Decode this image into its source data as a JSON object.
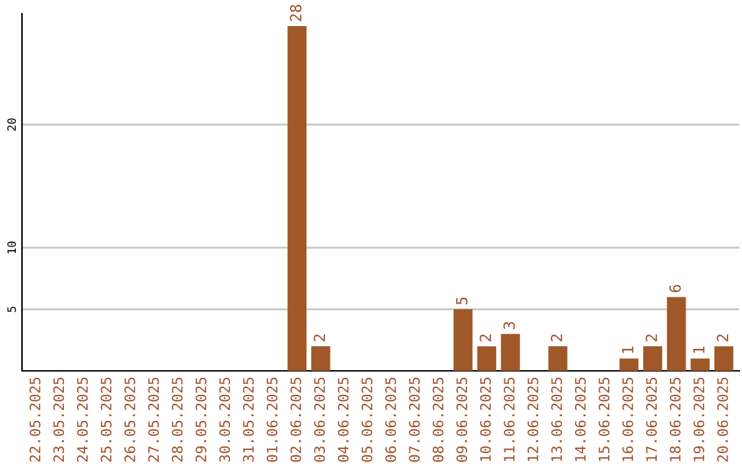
{
  "chart_data": {
    "type": "bar",
    "categories": [
      "22.05.2025",
      "23.05.2025",
      "24.05.2025",
      "25.05.2025",
      "26.05.2025",
      "27.05.2025",
      "28.05.2025",
      "29.05.2025",
      "30.05.2025",
      "31.05.2025",
      "01.06.2025",
      "02.06.2025",
      "03.06.2025",
      "04.06.2025",
      "05.06.2025",
      "06.06.2025",
      "07.06.2025",
      "08.06.2025",
      "09.06.2025",
      "10.06.2025",
      "11.06.2025",
      "12.06.2025",
      "13.06.2025",
      "14.06.2025",
      "15.06.2025",
      "16.06.2025",
      "17.06.2025",
      "18.06.2025",
      "19.06.2025",
      "20.06.2025"
    ],
    "values": [
      0,
      0,
      0,
      0,
      0,
      0,
      0,
      0,
      0,
      0,
      0,
      28,
      2,
      0,
      0,
      0,
      0,
      0,
      5,
      2,
      3,
      0,
      2,
      0,
      0,
      1,
      2,
      6,
      1,
      2
    ],
    "value_labels": [
      null,
      null,
      null,
      null,
      null,
      null,
      null,
      null,
      null,
      null,
      null,
      "28",
      "2",
      null,
      null,
      null,
      null,
      null,
      "5",
      "2",
      "3",
      null,
      "2",
      null,
      null,
      "1",
      "2",
      "6",
      "1",
      "2"
    ],
    "color": "#a0582a",
    "ylim": [
      0,
      29
    ],
    "yticks": [
      5,
      10,
      20
    ],
    "grid": "y"
  }
}
